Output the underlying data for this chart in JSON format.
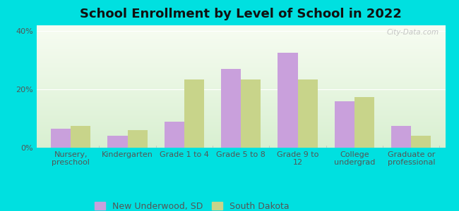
{
  "title": "School Enrollment by Level of School in 2022",
  "categories": [
    "Nursery,\npreschool",
    "Kindergarten",
    "Grade 1 to 4",
    "Grade 5 to 8",
    "Grade 9 to\n12",
    "College\nundergrad",
    "Graduate or\nprofessional"
  ],
  "new_underwood": [
    6.5,
    4.0,
    9.0,
    27.0,
    32.5,
    16.0,
    7.5
  ],
  "south_dakota": [
    7.5,
    6.0,
    23.5,
    23.5,
    23.5,
    17.5,
    4.0
  ],
  "color_new_underwood": "#c9a0dc",
  "color_south_dakota": "#c8d48a",
  "ylim": [
    0,
    42
  ],
  "yticks": [
    0,
    20,
    40
  ],
  "ytick_labels": [
    "0%",
    "20%",
    "40%"
  ],
  "background_color": "#00e0e0",
  "legend_label_1": "New Underwood, SD",
  "legend_label_2": "South Dakota",
  "title_fontsize": 13,
  "axis_fontsize": 8,
  "legend_fontsize": 9,
  "bar_width": 0.35,
  "watermark": "City-Data.com"
}
